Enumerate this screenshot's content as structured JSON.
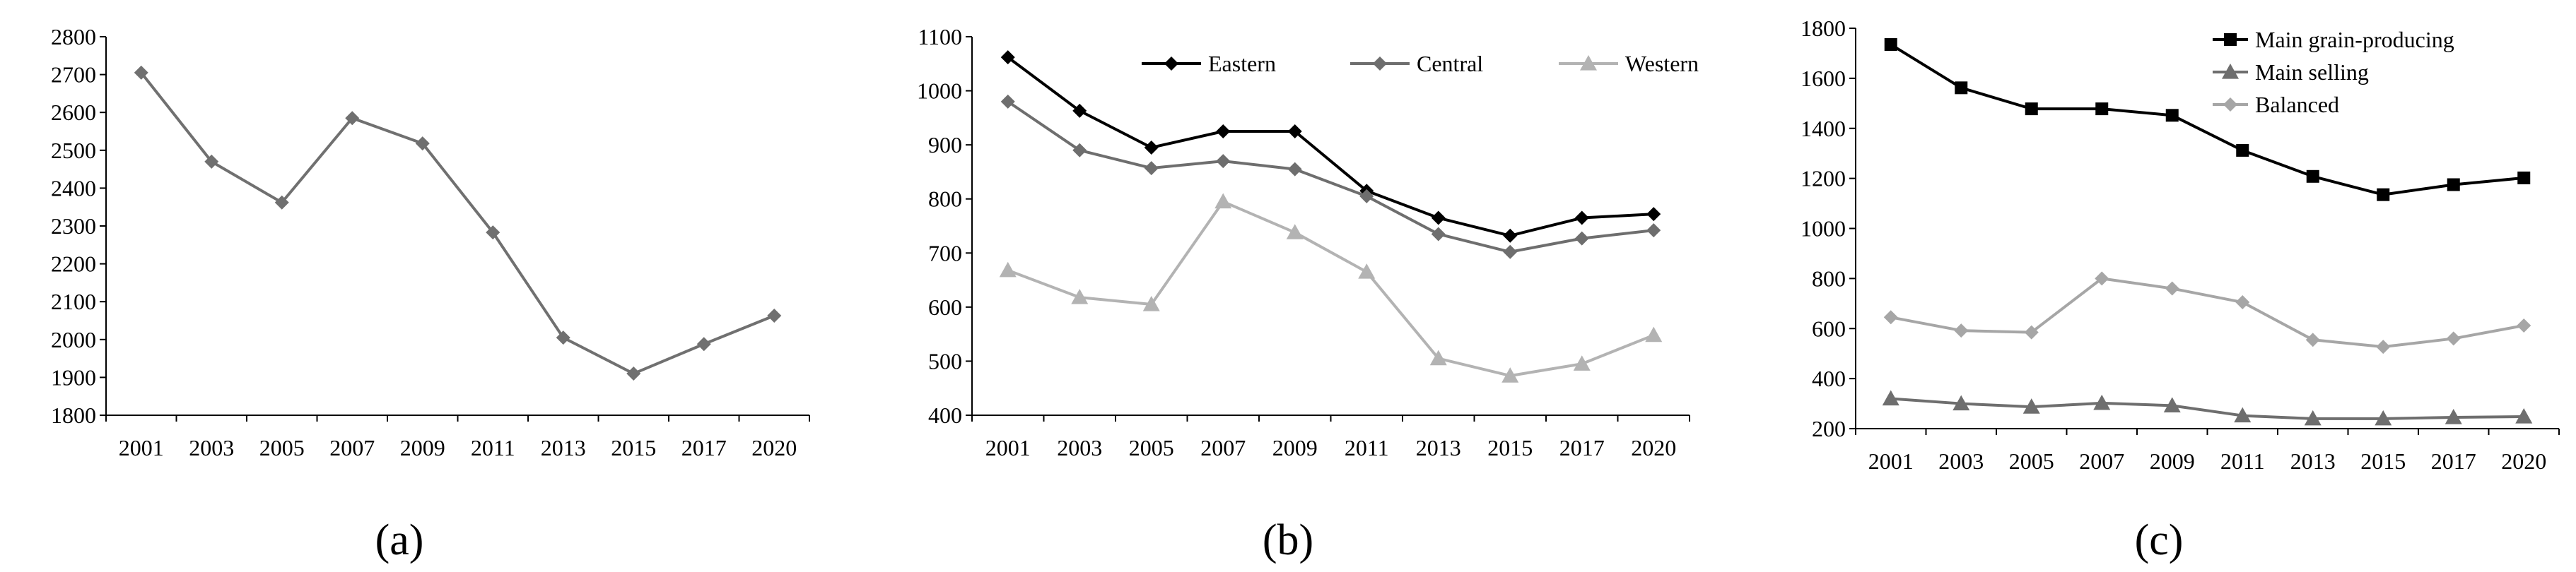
{
  "chart_data": [
    {
      "type": "line",
      "panel_label": "(a)",
      "categories": [
        "2001",
        "2003",
        "2005",
        "2007",
        "2009",
        "2011",
        "2013",
        "2015",
        "2017",
        "2020"
      ],
      "ylim": [
        1800,
        2800
      ],
      "ytick_step": 100,
      "legend": "none",
      "series": [
        {
          "name": "",
          "color": "#707070",
          "marker": "diamond",
          "values": [
            2705,
            2470,
            2362,
            2585,
            2518,
            2283,
            2005,
            1910,
            1988,
            2063
          ]
        }
      ]
    },
    {
      "type": "line",
      "panel_label": "(b)",
      "categories": [
        "2001",
        "2003",
        "2005",
        "2007",
        "2009",
        "2011",
        "2013",
        "2015",
        "2017",
        "2020"
      ],
      "ylim": [
        400,
        1100
      ],
      "ytick_step": 100,
      "legend": "top-right",
      "series": [
        {
          "name": "Eastern",
          "color": "#000000",
          "marker": "diamond",
          "values": [
            1062,
            963,
            895,
            925,
            925,
            815,
            765,
            732,
            765,
            772
          ]
        },
        {
          "name": "Central",
          "color": "#6e6e6e",
          "marker": "diamond",
          "values": [
            980,
            890,
            857,
            870,
            855,
            805,
            735,
            702,
            727,
            742
          ]
        },
        {
          "name": "Western",
          "color": "#b3b3b3",
          "marker": "triangle",
          "values": [
            668,
            618,
            605,
            795,
            738,
            665,
            505,
            473,
            495,
            548
          ]
        }
      ]
    },
    {
      "type": "line",
      "panel_label": "(c)",
      "categories": [
        "2001",
        "2003",
        "2005",
        "2007",
        "2009",
        "2011",
        "2013",
        "2015",
        "2017",
        "2020"
      ],
      "ylim": [
        200,
        1800
      ],
      "ytick_step": 200,
      "legend": "top-right",
      "series": [
        {
          "name": "Main grain-producing",
          "color": "#000000",
          "marker": "square",
          "values": [
            1735,
            1562,
            1478,
            1478,
            1452,
            1312,
            1208,
            1135,
            1175,
            1202
          ]
        },
        {
          "name": "Main selling",
          "color": "#6e6e6e",
          "marker": "triangle",
          "values": [
            320,
            300,
            287,
            302,
            292,
            252,
            240,
            240,
            245,
            248
          ]
        },
        {
          "name": "Balanced",
          "color": "#a6a6a6",
          "marker": "diamond",
          "values": [
            645,
            592,
            585,
            800,
            760,
            705,
            555,
            527,
            560,
            612
          ]
        }
      ]
    }
  ]
}
